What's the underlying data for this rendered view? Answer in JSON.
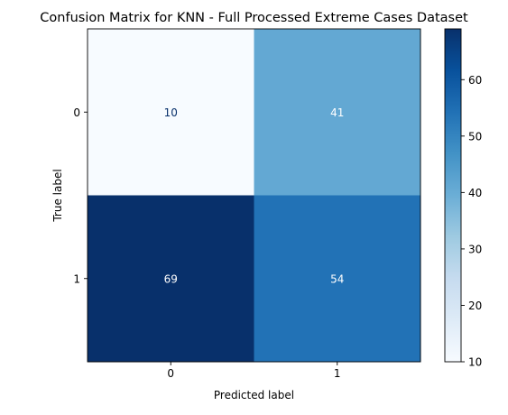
{
  "chart_data": {
    "type": "heatmap",
    "title": "Confusion Matrix for KNN - Full Processed Extreme Cases Dataset",
    "xlabel": "Predicted label",
    "ylabel": "True label",
    "x_categories": [
      "0",
      "1"
    ],
    "y_categories": [
      "0",
      "1"
    ],
    "values": [
      [
        10,
        41
      ],
      [
        69,
        54
      ]
    ],
    "colormap": "Blues",
    "colorbar": {
      "min": 10,
      "max": 69,
      "ticks": [
        10,
        20,
        30,
        40,
        50,
        60
      ],
      "tick_labels": [
        "10",
        "20",
        "30",
        "40",
        "50",
        "60"
      ]
    },
    "grid": false
  }
}
